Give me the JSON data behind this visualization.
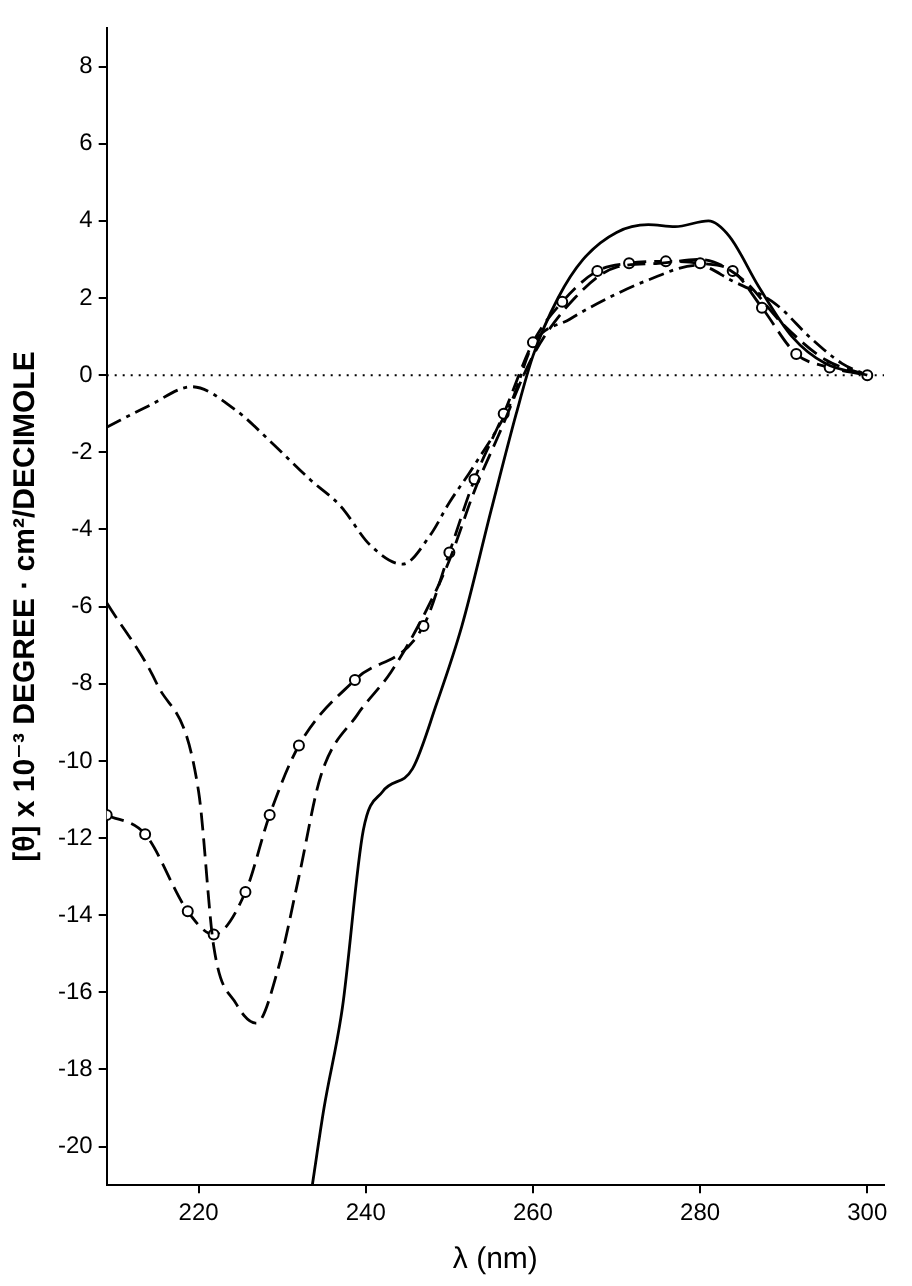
{
  "chart_data": {
    "type": "line",
    "xlabel": "λ (nm)",
    "ylabel": "[θ] x 10⁻³ DEGREE · cm²/DECIMOLE",
    "xlim": [
      209,
      302
    ],
    "ylim": [
      -21,
      9
    ],
    "xticks": [
      220,
      240,
      260,
      280,
      300
    ],
    "yticks": [
      -20,
      -18,
      -16,
      -14,
      -12,
      -10,
      -8,
      -6,
      -4,
      -2,
      0,
      2,
      4,
      6,
      8
    ],
    "grid": false,
    "legend": false,
    "ref_lines": [
      {
        "axis": "y",
        "value": 0,
        "label": null,
        "line_style": "dotted",
        "color": "#000000"
      }
    ],
    "series": [
      {
        "color": "#000000",
        "line_style": "solid",
        "marker": "none",
        "x": [
          233.6,
          235,
          237.2,
          239.7,
          242,
          245.6,
          248.5,
          251.5,
          255,
          258,
          260,
          263,
          266,
          270,
          273.8,
          277,
          281,
          283.5,
          287,
          291,
          295,
          300
        ],
        "values": [
          -21,
          -19,
          -16.4,
          -11.8,
          -10.8,
          -10.2,
          -8.5,
          -6.5,
          -3.5,
          -1.0,
          0.5,
          2.0,
          3.0,
          3.7,
          3.9,
          3.85,
          4.0,
          3.6,
          2.3,
          1.0,
          0.3,
          0
        ]
      },
      {
        "color": "#000000",
        "line_style": "dashed",
        "marker": "none",
        "x": [
          209,
          215,
          220,
          221.8,
          224.5,
          226.9,
          229.5,
          232,
          234.6,
          239,
          243,
          247,
          250,
          253,
          256,
          260,
          265,
          270,
          275,
          280,
          285,
          290,
          295,
          300
        ],
        "values": [
          -5.9,
          -8,
          -10.8,
          -14.8,
          -16.3,
          -16.8,
          -15.4,
          -13,
          -10.4,
          -8.8,
          -7.7,
          -6.2,
          -4.8,
          -3,
          -1.5,
          0.5,
          2.0,
          2.8,
          2.9,
          3.0,
          2.5,
          1.3,
          0.4,
          0
        ]
      },
      {
        "color": "#000000",
        "line_style": "dashed",
        "marker": "circle",
        "x": [
          209,
          213.6,
          218.7,
          221.8,
          225.6,
          228.5,
          232,
          238.7,
          246.9,
          250,
          253,
          256.5,
          260,
          263.5,
          267.7,
          271.5,
          275.9,
          280,
          283.9,
          287.4,
          291.5,
          295.5,
          300
        ],
        "values": [
          -11.4,
          -11.9,
          -13.9,
          -14.5,
          -13.4,
          -11.4,
          -9.6,
          -7.9,
          -6.5,
          -4.6,
          -2.7,
          -1.0,
          0.85,
          1.9,
          2.7,
          2.9,
          2.95,
          2.9,
          2.7,
          1.75,
          0.55,
          0.2,
          0
        ]
      },
      {
        "color": "#000000",
        "line_style": "dotted",
        "marker": "none",
        "x": [
          209,
          214,
          219.2,
          224.4,
          228.5,
          233.3,
          237,
          240.5,
          244.4,
          247.7,
          250,
          252.8,
          257.4,
          260,
          264.4,
          269,
          273.6,
          279.7,
          283.8,
          289,
          293.3,
          297,
          300
        ],
        "values": [
          -1.35,
          -0.8,
          -0.3,
          -0.9,
          -1.7,
          -2.7,
          -3.4,
          -4.4,
          -4.9,
          -4.15,
          -3.3,
          -2.4,
          -0.7,
          0.8,
          1.45,
          2.0,
          2.45,
          2.85,
          2.45,
          1.85,
          0.95,
          0.3,
          0
        ]
      }
    ]
  }
}
